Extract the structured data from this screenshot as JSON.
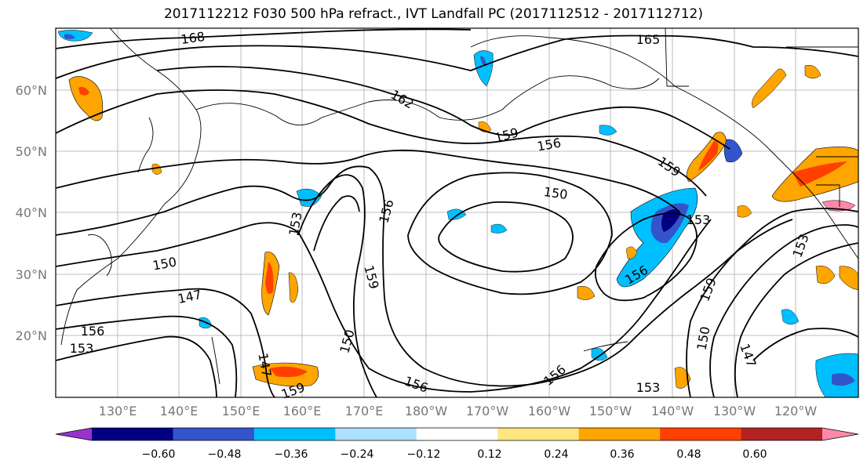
{
  "title": "2017112212 F030 500 hPa refract., IVT Landfall PC (2017112512 - 2017112712)",
  "lon_labels": [
    "130°E",
    "140°E",
    "150°E",
    "160°E",
    "170°E",
    "180°W",
    "170°W",
    "160°W",
    "150°W",
    "140°W",
    "130°W",
    "120°W"
  ],
  "lat_labels": [
    "60°N",
    "50°N",
    "40°N",
    "30°N",
    "20°N"
  ],
  "contour_labels": [
    "168",
    "165",
    "162",
    "159",
    "156",
    "159",
    "150",
    "153",
    "153",
    "150",
    "147",
    "156",
    "153",
    "156",
    "159",
    "150",
    "147",
    "159",
    "156",
    "150",
    "147",
    "156",
    "153",
    "159",
    "156",
    "153"
  ],
  "colorbar": {
    "ticks": [
      "−0.60",
      "−0.48",
      "−0.36",
      "−0.24",
      "−0.12",
      "0.12",
      "0.24",
      "0.36",
      "0.48",
      "0.60"
    ],
    "colors": [
      "#9933cc",
      "#000080",
      "#3355cc",
      "#00bfff",
      "#aee0ff",
      "#ffffff",
      "#ffe680",
      "#ffa500",
      "#ff4000",
      "#b22222",
      "#ff88aa"
    ]
  }
}
